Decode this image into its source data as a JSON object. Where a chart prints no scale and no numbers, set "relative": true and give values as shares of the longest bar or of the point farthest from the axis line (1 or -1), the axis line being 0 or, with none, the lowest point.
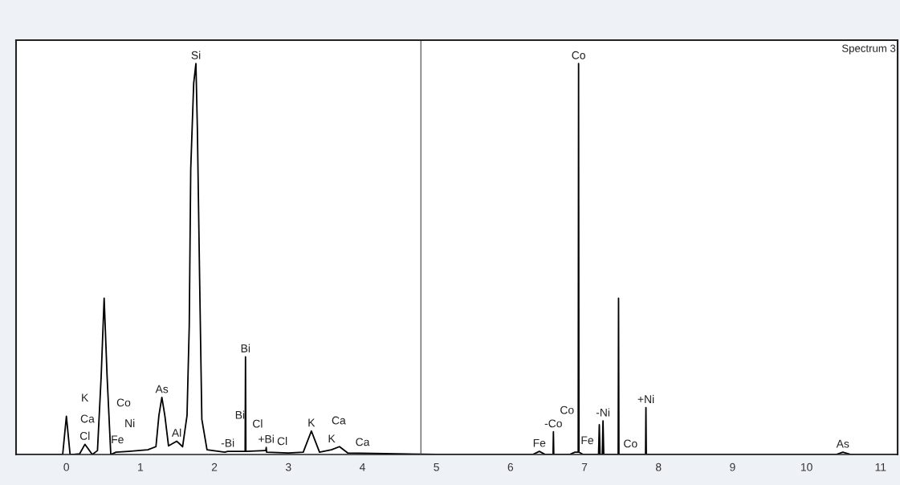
{
  "chart_data": {
    "type": "line",
    "relative": true,
    "tick_labels": "x",
    "xlim": [
      -0.68,
      11.23
    ],
    "xticks": [
      0,
      1,
      2,
      3,
      4,
      5,
      6,
      7,
      8,
      9,
      10,
      11
    ],
    "series": [
      {
        "color": "#000000",
        "x": [
          -0.68,
          -0.1,
          -0.05,
          0,
          0.05,
          0.1,
          0.18,
          0.25,
          0.35,
          0.42,
          0.47,
          0.51,
          0.55,
          0.6,
          0.67,
          0.84,
          1.1,
          1.21,
          1.25,
          1.29,
          1.33,
          1.38,
          1.49,
          1.57,
          1.63,
          1.66,
          1.68,
          1.72,
          1.75,
          1.77,
          1.8,
          1.83,
          1.9,
          2.14,
          2.18,
          2.38,
          2.415,
          2.42,
          2.425,
          2.68,
          2.695,
          2.7,
          2.705,
          3.0,
          3.2,
          3.31,
          3.42,
          3.58,
          3.69,
          3.8,
          4.31,
          5.0,
          6.3,
          6.39,
          6.47,
          6.575,
          6.58,
          6.585,
          6.8,
          6.87,
          6.915,
          6.92,
          6.925,
          6.98,
          7.19,
          7.2,
          7.21,
          7.24,
          7.25,
          7.26,
          7.455,
          7.46,
          7.465,
          7.825,
          7.83,
          7.835,
          10.4,
          10.49,
          10.6,
          11.23
        ],
        "values": [
          0,
          0,
          0,
          0.098,
          0,
          0,
          0.002,
          0.026,
          0,
          0.01,
          0.2,
          0.4,
          0.2,
          0,
          0.006,
          0.008,
          0.012,
          0.02,
          0.1,
          0.146,
          0.1,
          0.022,
          0.034,
          0.02,
          0.1,
          0.33,
          0.73,
          0.95,
          1.0,
          0.83,
          0.45,
          0.09,
          0.012,
          0.006,
          0.008,
          0.008,
          0.008,
          0.25,
          0.008,
          0.01,
          0.01,
          0.018,
          0.006,
          0.004,
          0.006,
          0.06,
          0.006,
          0.012,
          0.02,
          0.004,
          0.002,
          0,
          0,
          0.008,
          0,
          0,
          0.058,
          0,
          0,
          0.006,
          0.006,
          1.0,
          0.006,
          0,
          0,
          0.076,
          0,
          0,
          0.086,
          0,
          0,
          0.4,
          0,
          0,
          0.12,
          0,
          0,
          0.006,
          0,
          0
        ]
      }
    ],
    "ref_lines": [
      {
        "axis": "x",
        "value": 4.79,
        "color": "#666666"
      }
    ],
    "annotations": [
      "Spectrum 3",
      {
        "text": "Si",
        "x": 1.75,
        "y": 1.0
      },
      "K",
      "Ca",
      {
        "text": "Cl",
        "x": 0.25,
        "y": 0.026
      },
      "Co",
      "Ni",
      "Fe",
      {
        "text": "As",
        "x": 1.29,
        "y": 0.146
      },
      {
        "text": "Al",
        "x": 1.49,
        "y": 0.034
      },
      {
        "text": "-Bi",
        "x": 2.18,
        "y": 0.008
      },
      {
        "text": "Bi",
        "x": 2.42,
        "y": 0.25
      },
      "Bi",
      "Cl",
      {
        "text": "+Bi",
        "x": 2.7,
        "y": 0.018
      },
      "Cl",
      {
        "text": "K",
        "x": 3.31,
        "y": 0.06
      },
      "Ca",
      "K",
      "Ca",
      {
        "text": "Fe",
        "x": 6.39,
        "y": 0.008
      },
      {
        "text": "-Co",
        "x": 6.58,
        "y": 0.058
      },
      "Co",
      "Fe",
      {
        "text": "-Ni",
        "x": 7.25,
        "y": 0.086
      },
      "Co",
      {
        "text": "+Ni",
        "x": 7.83,
        "y": 0.12
      },
      {
        "text": "As",
        "x": 10.49,
        "y": 0.006
      },
      {
        "text": "Co",
        "x": 6.92,
        "y": 1.0
      }
    ]
  }
}
